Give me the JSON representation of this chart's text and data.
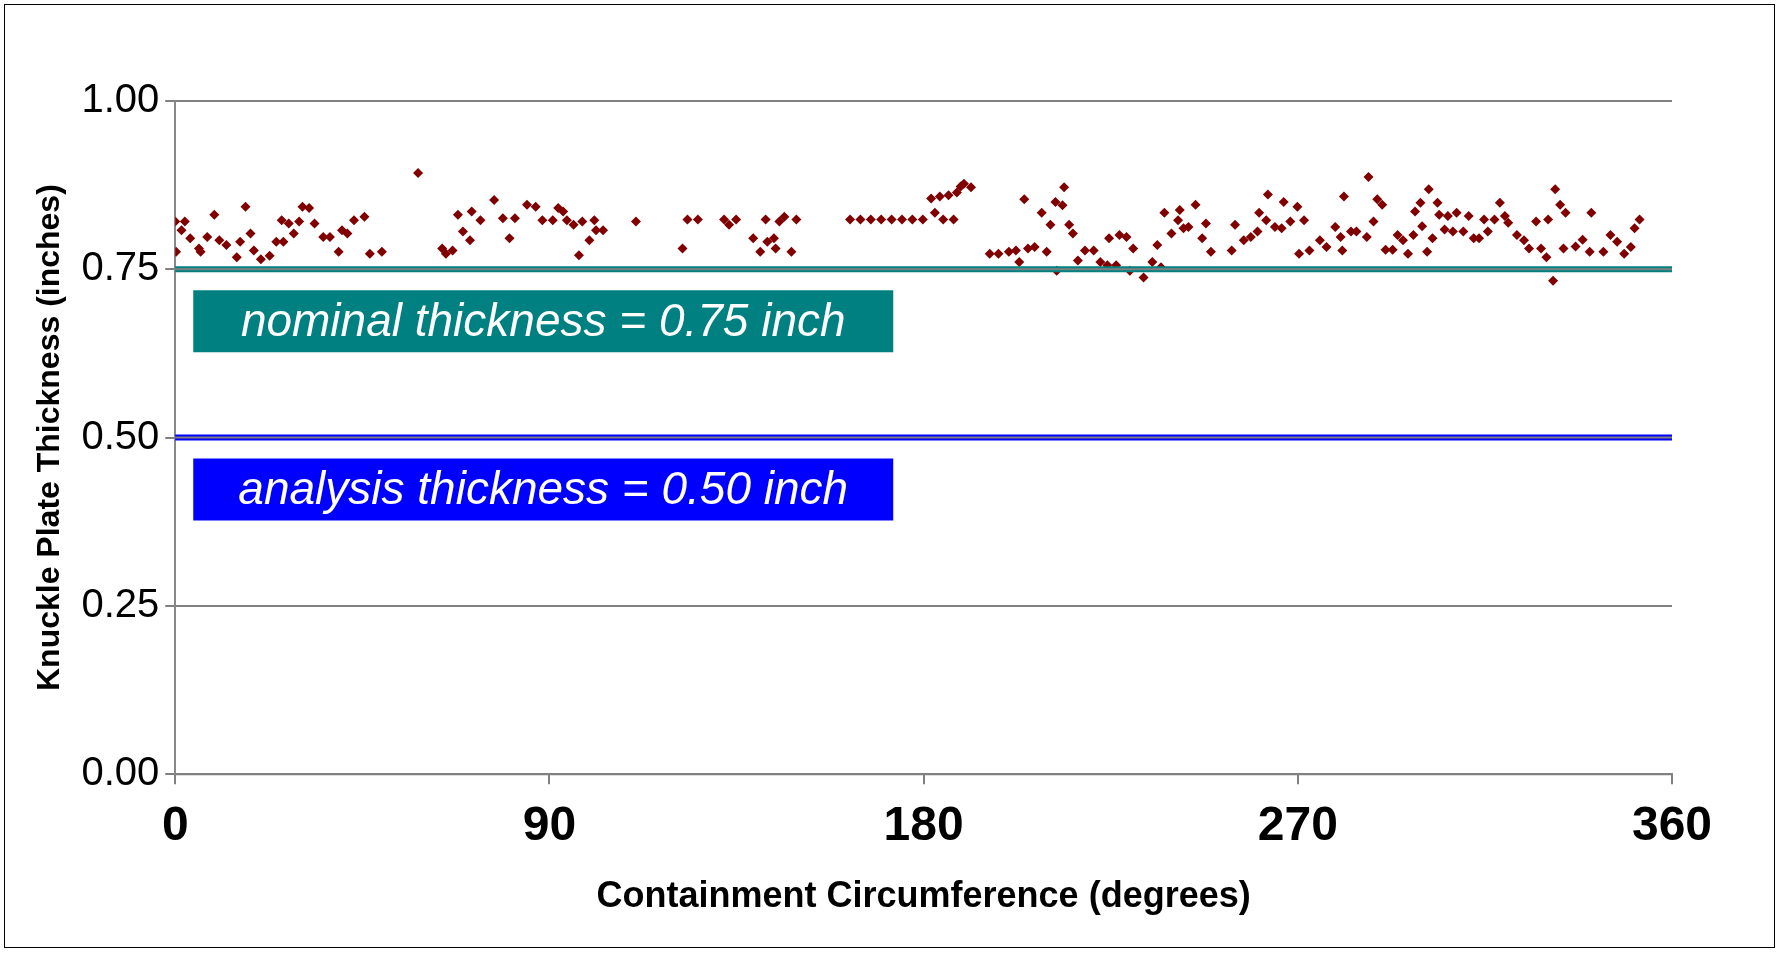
{
  "chart_data": {
    "type": "scatter",
    "xlabel": "Containment Circumference (degrees)",
    "ylabel": "Knuckle Plate Thickness (inches)",
    "xlim": [
      0,
      360
    ],
    "xticks": [
      0,
      90,
      180,
      270,
      360
    ],
    "ylim": [
      0,
      1
    ],
    "yticks": [
      {
        "value": 0,
        "label": "0.00"
      },
      {
        "value": 0.25,
        "label": "0.25"
      },
      {
        "value": 0.5,
        "label": "0.50"
      },
      {
        "value": 0.75,
        "label": "0.75"
      },
      {
        "value": 1,
        "label": "1.00"
      }
    ],
    "grid": "y",
    "legend": false,
    "marker": "diamond",
    "ref_lines": [
      {
        "axis": "y",
        "value": 0.75,
        "label": "nominal thickness = 0.75 inch",
        "color": "#008080"
      },
      {
        "axis": "y",
        "value": 0.5,
        "label": "analysis thickness = 0.50 inch",
        "color": "#0000ff"
      }
    ],
    "series": [
      {
        "color": "#800000",
        "x": [
          0,
          2.3,
          0.2,
          1.5,
          3.6,
          5.7,
          6.1,
          7.7,
          9.4,
          10.6,
          12.3,
          14.8,
          15.6,
          16.9,
          18.1,
          18.9,
          20.6,
          22.7,
          24.3,
          26.0,
          25.6,
          27.3,
          28.5,
          29.8,
          30.6,
          32.2,
          33.5,
          35.6,
          37.2,
          39.3,
          40.1,
          41.4,
          43.0,
          45.5,
          46.8,
          49.7,
          58.4,
          64.2,
          65.1,
          66.7,
          68.0,
          69.2,
          70.9,
          71.3,
          73.4,
          76.7,
          78.8,
          80.4,
          81.7,
          84.6,
          86.7,
          88.3,
          90.8,
          92.1,
          94.2,
          93.3,
          95.8,
          97.9,
          100.8,
          101.2,
          102.9,
          99.6,
          97.1,
          110.8,
          122.0,
          123.2,
          125.7,
          132.0,
          133.2,
          134.9,
          139.0,
          140.7,
          142.0,
          142.4,
          144.0,
          144.4,
          145.3,
          146.5,
          148.2,
          149.4,
          162.3,
          164.8,
          167.3,
          169.8,
          172.3,
          174.8,
          177.3,
          179.8,
          182.7,
          184.7,
          187.2,
          181.8,
          183.9,
          186.0,
          188.9,
          188.0,
          189.7,
          191.4,
          195.9,
          198.0,
          200.5,
          202.2,
          203.0,
          204.2,
          205.1,
          206.7,
          208.4,
          209.6,
          210.5,
          211.7,
          213.8,
          213.4,
          215.0,
          215.9,
          212.0,
          217.1,
          218.8,
          220.9,
          222.5,
          224.2,
          224.6,
          226.3,
          227.1,
          228.8,
          229.6,
          230.4,
          232.9,
          235.0,
          236.2,
          237.1,
          237.9,
          239.6,
          241.2,
          241.6,
          242.5,
          243.7,
          245.4,
          247.0,
          247.9,
          249.1,
          254.1,
          254.9,
          257.0,
          258.7,
          260.3,
          260.7,
          262.4,
          262.8,
          264.5,
          266.1,
          266.6,
          268.2,
          269.9,
          271.5,
          270.3,
          272.8,
          275.3,
          276.9,
          279.0,
          280.3,
          280.7,
          281.1,
          282.8,
          284.1,
          286.6,
          287.0,
          288.2,
          289.1,
          290.3,
          291.1,
          292.8,
          294.0,
          295.3,
          296.5,
          297.8,
          298.2,
          299.5,
          299.9,
          301.1,
          302.4,
          301.5,
          303.6,
          304.0,
          305.3,
          306.1,
          307.3,
          308.2,
          309.8,
          311.1,
          312.3,
          313.6,
          314.8,
          315.7,
          317.3,
          318.6,
          319.8,
          320.6,
          322.7,
          324.4,
          325.6,
          327.3,
          328.5,
          330.2,
          329.8,
          331.4,
          331.9,
          333.1,
          334.4,
          333.9,
          336.8,
          338.5,
          340.6,
          340.2,
          343.5,
          345.2,
          346.8,
          348.5,
          350.1,
          351.0,
          352.2
        ],
        "values": [
          0.821,
          0.821,
          0.776,
          0.808,
          0.796,
          0.781,
          0.776,
          0.798,
          0.831,
          0.793,
          0.786,
          0.768,
          0.791,
          0.843,
          0.803,
          0.778,
          0.765,
          0.77,
          0.791,
          0.791,
          0.823,
          0.818,
          0.803,
          0.821,
          0.843,
          0.841,
          0.818,
          0.798,
          0.798,
          0.776,
          0.808,
          0.803,
          0.823,
          0.828,
          0.773,
          0.776,
          0.893,
          0.781,
          0.773,
          0.778,
          0.831,
          0.806,
          0.793,
          0.836,
          0.823,
          0.853,
          0.826,
          0.796,
          0.826,
          0.846,
          0.843,
          0.823,
          0.823,
          0.841,
          0.823,
          0.836,
          0.816,
          0.821,
          0.823,
          0.808,
          0.808,
          0.793,
          0.771,
          0.821,
          0.781,
          0.824,
          0.824,
          0.824,
          0.816,
          0.824,
          0.796,
          0.776,
          0.824,
          0.791,
          0.796,
          0.781,
          0.821,
          0.828,
          0.776,
          0.824,
          0.824,
          0.824,
          0.824,
          0.824,
          0.824,
          0.824,
          0.824,
          0.824,
          0.834,
          0.824,
          0.824,
          0.855,
          0.858,
          0.86,
          0.873,
          0.864,
          0.877,
          0.872,
          0.773,
          0.773,
          0.776,
          0.778,
          0.761,
          0.854,
          0.781,
          0.783,
          0.834,
          0.776,
          0.816,
          0.85,
          0.872,
          0.845,
          0.816,
          0.803,
          0.748,
          0.763,
          0.778,
          0.778,
          0.761,
          0.756,
          0.796,
          0.756,
          0.801,
          0.798,
          0.748,
          0.781,
          0.738,
          0.761,
          0.786,
          0.753,
          0.834,
          0.803,
          0.823,
          0.838,
          0.811,
          0.813,
          0.846,
          0.796,
          0.818,
          0.776,
          0.778,
          0.816,
          0.793,
          0.798,
          0.806,
          0.834,
          0.823,
          0.861,
          0.813,
          0.811,
          0.85,
          0.821,
          0.843,
          0.823,
          0.773,
          0.778,
          0.793,
          0.783,
          0.813,
          0.798,
          0.778,
          0.858,
          0.806,
          0.806,
          0.798,
          0.887,
          0.821,
          0.854,
          0.846,
          0.779,
          0.779,
          0.801,
          0.793,
          0.773,
          0.801,
          0.836,
          0.849,
          0.814,
          0.776,
          0.796,
          0.869,
          0.849,
          0.831,
          0.809,
          0.829,
          0.806,
          0.834,
          0.806,
          0.829,
          0.796,
          0.796,
          0.824,
          0.806,
          0.824,
          0.849,
          0.829,
          0.819,
          0.801,
          0.793,
          0.781,
          0.821,
          0.781,
          0.824,
          0.768,
          0.733,
          0.869,
          0.846,
          0.834,
          0.781,
          0.784,
          0.794,
          0.834,
          0.776,
          0.776,
          0.801,
          0.791,
          0.773,
          0.783,
          0.811,
          0.824
        ]
      }
    ]
  }
}
